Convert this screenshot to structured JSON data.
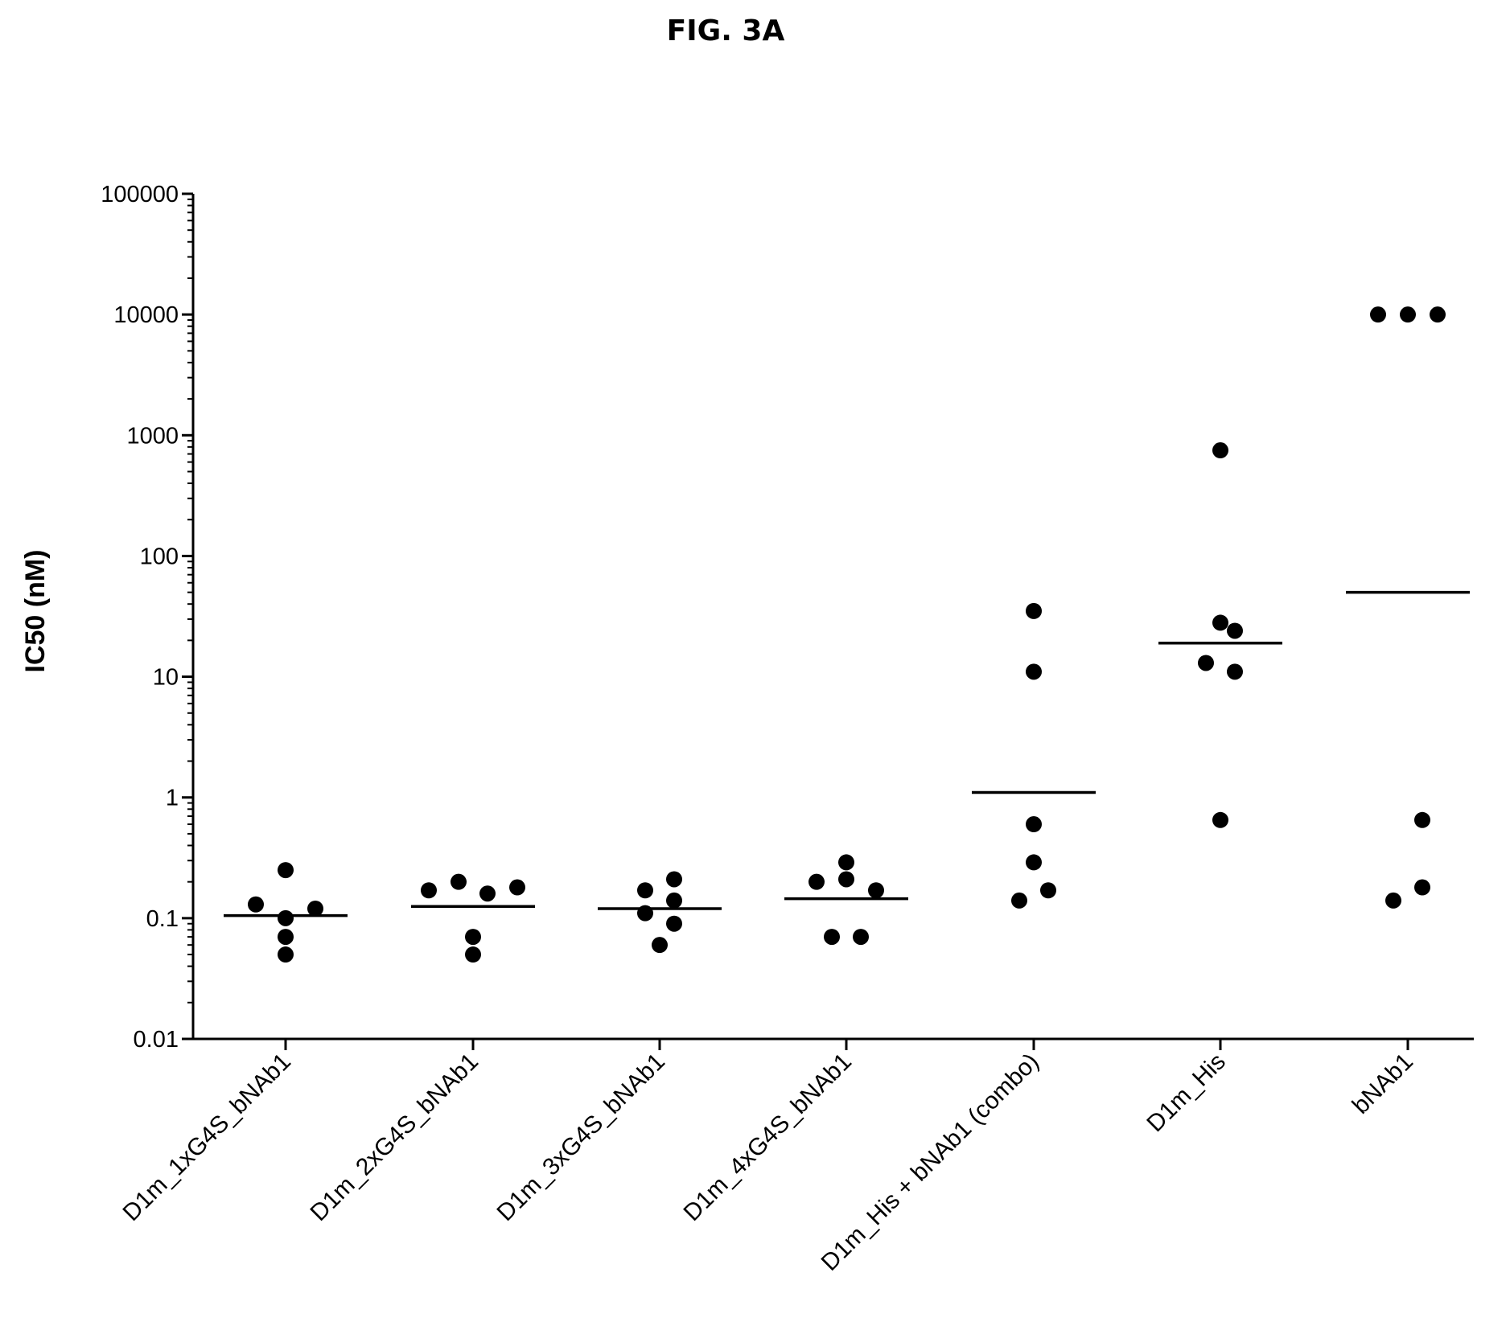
{
  "figure_title": "FIG. 3A",
  "chart_data": {
    "type": "scatter",
    "title": "",
    "xlabel": "",
    "ylabel": "IC50 (nM)",
    "yscale": "log",
    "ylim": [
      0.01,
      100000
    ],
    "yticks": [
      "0.01",
      "0.1",
      "1",
      "10",
      "100",
      "1000",
      "10000",
      "100000"
    ],
    "ytick_values": [
      0.01,
      0.1,
      1,
      10,
      100,
      1000,
      10000,
      100000
    ],
    "categories": [
      "D1m_1xG4S_bNAb1",
      "D1m_2xG4S_bNAb1",
      "D1m_3xG4S_bNAb1",
      "D1m_4xG4S_bNAb1",
      "D1m_His + bNAb1 (combo)",
      "D1m_His",
      "bNAb1"
    ],
    "series": [
      {
        "category": "D1m_1xG4S_bNAb1",
        "values": [
          0.25,
          0.13,
          0.1,
          0.12,
          0.07,
          0.05
        ],
        "median": 0.105
      },
      {
        "category": "D1m_2xG4S_bNAb1",
        "values": [
          0.17,
          0.2,
          0.16,
          0.18,
          0.07,
          0.05
        ],
        "median": 0.125
      },
      {
        "category": "D1m_3xG4S_bNAb1",
        "values": [
          0.17,
          0.21,
          0.11,
          0.14,
          0.09,
          0.06
        ],
        "median": 0.12
      },
      {
        "category": "D1m_4xG4S_bNAb1",
        "values": [
          0.2,
          0.29,
          0.21,
          0.17,
          0.07,
          0.07
        ],
        "median": 0.145
      },
      {
        "category": "D1m_His + bNAb1 (combo)",
        "values": [
          35,
          11,
          0.6,
          0.29,
          0.14,
          0.17
        ],
        "median": 1.1
      },
      {
        "category": "D1m_His",
        "values": [
          750,
          28,
          24,
          13,
          11,
          0.65
        ],
        "median": 19
      },
      {
        "category": "bNAb1",
        "values": [
          10000,
          10000,
          10000,
          0.65,
          0.14,
          0.18
        ],
        "median": 50
      }
    ],
    "grid": false,
    "legend": "none",
    "marker_color": "#000000"
  }
}
